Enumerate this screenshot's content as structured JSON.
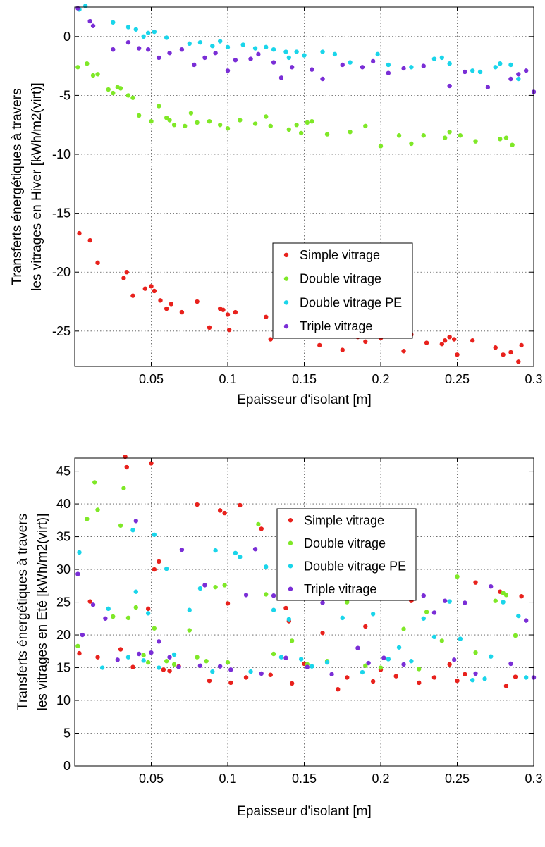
{
  "chart_data": [
    {
      "type": "scatter",
      "xlabel": "Epaisseur d'isolant [m]",
      "ylabel": [
        "Transferts énergétiques à travers",
        "les vitrages en Hiver [kWh/m2(virt)]"
      ],
      "xlim": [
        0,
        0.3
      ],
      "ylim": [
        -28,
        2.5
      ],
      "xticks": [
        0.05,
        0.1,
        0.15,
        0.2,
        0.25,
        0.3
      ],
      "xtick_labels": [
        "0.05",
        "0.1",
        "0.15",
        "0.2",
        "0.25",
        "0.3"
      ],
      "yticks": [
        0,
        -5,
        -10,
        -15,
        -20,
        -25
      ],
      "ytick_labels": [
        "0",
        "-5",
        "-10",
        "-15",
        "-20",
        "-25"
      ],
      "grid": true,
      "legend_position": "lower-right",
      "series": [
        {
          "name": "Simple vitrage",
          "color": "#e8211c",
          "x": [
            0.003,
            0.01,
            0.015,
            0.032,
            0.034,
            0.038,
            0.046,
            0.05,
            0.052,
            0.056,
            0.06,
            0.063,
            0.07,
            0.08,
            0.088,
            0.095,
            0.097,
            0.1,
            0.101,
            0.105,
            0.125,
            0.128,
            0.14,
            0.142,
            0.16,
            0.165,
            0.175,
            0.185,
            0.19,
            0.195,
            0.2,
            0.215,
            0.22,
            0.23,
            0.24,
            0.242,
            0.245,
            0.248,
            0.25,
            0.26,
            0.275,
            0.28,
            0.285,
            0.29,
            0.292
          ],
          "y": [
            -16.7,
            -17.3,
            -19.2,
            -20.5,
            -20,
            -22,
            -21.4,
            -21.2,
            -21.6,
            -22.4,
            -23.1,
            -22.7,
            -23.4,
            -22.5,
            -24.7,
            -23.1,
            -23.2,
            -23.6,
            -24.9,
            -23.4,
            -23.8,
            -25.7,
            -25.4,
            -25.3,
            -26.2,
            -25.1,
            -26.6,
            -25.5,
            -25.9,
            -25.3,
            -25.6,
            -26.7,
            -25.3,
            -26,
            -26.1,
            -25.8,
            -25.5,
            -25.7,
            -27,
            -25.8,
            -26.4,
            -27,
            -26.8,
            -27.6,
            -26.2
          ]
        },
        {
          "name": "Double vitrage",
          "color": "#7fe827",
          "x": [
            0.002,
            0.008,
            0.012,
            0.015,
            0.022,
            0.025,
            0.028,
            0.03,
            0.035,
            0.038,
            0.042,
            0.05,
            0.055,
            0.06,
            0.062,
            0.065,
            0.072,
            0.076,
            0.08,
            0.088,
            0.095,
            0.1,
            0.108,
            0.118,
            0.125,
            0.128,
            0.14,
            0.145,
            0.148,
            0.152,
            0.155,
            0.165,
            0.18,
            0.19,
            0.2,
            0.212,
            0.22,
            0.228,
            0.242,
            0.245,
            0.252,
            0.262,
            0.278,
            0.282,
            0.286
          ],
          "y": [
            -2.6,
            -2.3,
            -3.3,
            -3.2,
            -4.5,
            -4.8,
            -4.3,
            -4.4,
            -5,
            -5.2,
            -6.7,
            -7.2,
            -5.9,
            -6.9,
            -7.1,
            -7.5,
            -7.6,
            -6.5,
            -7.3,
            -7.2,
            -7.5,
            -7.8,
            -7.1,
            -7.4,
            -6.8,
            -7.6,
            -7.9,
            -7.5,
            -8.2,
            -7.3,
            -7.2,
            -8.3,
            -8.1,
            -7.6,
            -9.3,
            -8.4,
            -9.1,
            -8.4,
            -8.6,
            -8.1,
            -8.4,
            -8.9,
            -8.7,
            -8.6,
            -9.2
          ]
        },
        {
          "name": "Double vitrage PE",
          "color": "#1ad5ea",
          "x": [
            0.003,
            0.007,
            0.025,
            0.035,
            0.04,
            0.045,
            0.048,
            0.052,
            0.06,
            0.075,
            0.082,
            0.09,
            0.095,
            0.1,
            0.11,
            0.118,
            0.125,
            0.13,
            0.138,
            0.14,
            0.145,
            0.15,
            0.162,
            0.17,
            0.18,
            0.198,
            0.205,
            0.22,
            0.235,
            0.24,
            0.245,
            0.26,
            0.265,
            0.275,
            0.278,
            0.285,
            0.29
          ],
          "y": [
            2.3,
            2.6,
            1.2,
            0.8,
            0.6,
            0,
            0.3,
            0.4,
            -0.1,
            -0.6,
            -0.5,
            -0.8,
            -0.4,
            -0.9,
            -0.7,
            -1,
            -0.9,
            -1.1,
            -1.3,
            -1.8,
            -1.3,
            -1.6,
            -1.3,
            -1.5,
            -2.2,
            -1.5,
            -2.4,
            -2.6,
            -1.9,
            -1.8,
            -2.3,
            -2.9,
            -3,
            -2.6,
            -2.3,
            -2.4,
            -3.6
          ]
        },
        {
          "name": "Triple vitrage",
          "color": "#7a2ed6",
          "x": [
            0.002,
            0.01,
            0.012,
            0.025,
            0.035,
            0.042,
            0.048,
            0.055,
            0.062,
            0.07,
            0.078,
            0.085,
            0.092,
            0.1,
            0.105,
            0.115,
            0.12,
            0.13,
            0.135,
            0.142,
            0.155,
            0.162,
            0.175,
            0.188,
            0.195,
            0.205,
            0.215,
            0.228,
            0.245,
            0.255,
            0.27,
            0.285,
            0.29,
            0.295,
            0.3
          ],
          "y": [
            2.4,
            1.3,
            0.9,
            -1.1,
            -0.5,
            -1,
            -1.1,
            -1.8,
            -1.4,
            -1.1,
            -2.4,
            -1.8,
            -1.4,
            -2.9,
            -2,
            -1.9,
            -1.5,
            -2.2,
            -3.5,
            -2.6,
            -2.8,
            -3.6,
            -2.4,
            -2.6,
            -2.1,
            -3.1,
            -2.7,
            -2.5,
            -4.2,
            -3,
            -4.3,
            -3.6,
            -3.2,
            -2.9,
            -4.7
          ]
        }
      ]
    },
    {
      "type": "scatter",
      "xlabel": "Epaisseur d'isolant [m]",
      "ylabel": [
        "Transferts énergétiques à travers",
        "les vitrages en Eté [kWh/m2(virt)]"
      ],
      "xlim": [
        0,
        0.3
      ],
      "ylim": [
        0,
        47
      ],
      "xticks": [
        0.05,
        0.1,
        0.15,
        0.2,
        0.25,
        0.3
      ],
      "xtick_labels": [
        "0.05",
        "0.1",
        "0.15",
        "0.2",
        "0.25",
        "0.3"
      ],
      "yticks": [
        0,
        5,
        10,
        15,
        20,
        25,
        30,
        35,
        40,
        45
      ],
      "ytick_labels": [
        "0",
        "5",
        "10",
        "15",
        "20",
        "25",
        "30",
        "35",
        "40",
        "45"
      ],
      "grid": true,
      "legend_position": "top-right",
      "series": [
        {
          "name": "Simple vitrage",
          "color": "#e8211c",
          "x": [
            0.003,
            0.01,
            0.015,
            0.03,
            0.033,
            0.034,
            0.038,
            0.048,
            0.05,
            0.052,
            0.055,
            0.058,
            0.062,
            0.068,
            0.08,
            0.088,
            0.095,
            0.098,
            0.1,
            0.102,
            0.108,
            0.112,
            0.122,
            0.128,
            0.138,
            0.14,
            0.142,
            0.15,
            0.162,
            0.172,
            0.178,
            0.19,
            0.195,
            0.2,
            0.21,
            0.22,
            0.225,
            0.235,
            0.245,
            0.25,
            0.255,
            0.262,
            0.278,
            0.282,
            0.288,
            0.292
          ],
          "y": [
            17.2,
            25.1,
            16.6,
            17.8,
            47.2,
            45.6,
            15.1,
            24,
            46.2,
            30,
            31.2,
            14.7,
            14.5,
            15.2,
            39.9,
            13,
            39,
            38.6,
            24.8,
            12.7,
            39.8,
            13.5,
            36.2,
            13.9,
            24.1,
            22.1,
            12.6,
            15.6,
            20.3,
            11.7,
            13.5,
            21.3,
            12.9,
            14.7,
            13.7,
            25.2,
            12.7,
            13.5,
            15.5,
            13,
            14,
            28,
            26.6,
            12.2,
            13.6,
            25.9
          ]
        },
        {
          "name": "Double vitrage",
          "color": "#7fe827",
          "x": [
            0.002,
            0.008,
            0.013,
            0.015,
            0.025,
            0.03,
            0.032,
            0.035,
            0.04,
            0.045,
            0.048,
            0.052,
            0.06,
            0.065,
            0.075,
            0.08,
            0.086,
            0.092,
            0.098,
            0.1,
            0.12,
            0.125,
            0.13,
            0.142,
            0.145,
            0.152,
            0.165,
            0.178,
            0.19,
            0.2,
            0.215,
            0.225,
            0.23,
            0.24,
            0.25,
            0.262,
            0.275,
            0.28,
            0.282,
            0.288
          ],
          "y": [
            18.3,
            37.7,
            43.3,
            39.1,
            22.8,
            36.7,
            42.4,
            22.6,
            24.2,
            16.9,
            15.8,
            21,
            16,
            15.5,
            20.7,
            16.6,
            16,
            27.3,
            27.6,
            15.8,
            36.9,
            26.2,
            17.1,
            19.1,
            27.1,
            15.5,
            16,
            25,
            15.3,
            15,
            20.9,
            14.8,
            23.5,
            19.1,
            28.9,
            17.3,
            25.2,
            26.4,
            26.1,
            19.9
          ]
        },
        {
          "name": "Double vitrage PE",
          "color": "#1ad5ea",
          "x": [
            0.003,
            0.018,
            0.022,
            0.035,
            0.038,
            0.04,
            0.045,
            0.048,
            0.052,
            0.055,
            0.06,
            0.065,
            0.075,
            0.082,
            0.09,
            0.092,
            0.105,
            0.108,
            0.115,
            0.125,
            0.13,
            0.135,
            0.14,
            0.148,
            0.155,
            0.165,
            0.175,
            0.188,
            0.195,
            0.205,
            0.212,
            0.22,
            0.228,
            0.235,
            0.245,
            0.252,
            0.26,
            0.268,
            0.272,
            0.28,
            0.29,
            0.295
          ],
          "y": [
            32.6,
            15,
            24,
            16.6,
            36,
            26.6,
            16.1,
            23.3,
            35.3,
            15,
            30.1,
            17,
            23.8,
            27.1,
            14.4,
            32.9,
            32.5,
            31.9,
            14.4,
            30.4,
            23.8,
            16.6,
            22.4,
            16.3,
            15.2,
            15.8,
            22.6,
            14.3,
            23.2,
            16.3,
            18.1,
            16,
            22.5,
            19.7,
            25.1,
            19.4,
            13.1,
            13.3,
            16.7,
            25,
            22.9,
            13.5
          ]
        },
        {
          "name": "Triple vitrage",
          "color": "#7a2ed6",
          "x": [
            0.002,
            0.005,
            0.012,
            0.02,
            0.028,
            0.04,
            0.042,
            0.05,
            0.055,
            0.062,
            0.068,
            0.07,
            0.082,
            0.085,
            0.095,
            0.102,
            0.112,
            0.118,
            0.122,
            0.13,
            0.138,
            0.145,
            0.152,
            0.162,
            0.168,
            0.185,
            0.192,
            0.202,
            0.215,
            0.228,
            0.235,
            0.242,
            0.248,
            0.255,
            0.262,
            0.272,
            0.285,
            0.295,
            0.3
          ],
          "y": [
            29.3,
            20,
            24.6,
            22.5,
            16.2,
            37.4,
            17.1,
            17.3,
            19,
            16.6,
            15.1,
            33,
            15.3,
            27.6,
            15.2,
            14.7,
            26.1,
            33.1,
            14.1,
            26,
            16.5,
            27.3,
            15.1,
            24.9,
            14,
            18,
            15.7,
            16.5,
            15.5,
            26,
            23.4,
            25.2,
            16.2,
            24.9,
            14.1,
            27.4,
            15.6,
            22.2,
            13.5
          ]
        }
      ]
    }
  ]
}
